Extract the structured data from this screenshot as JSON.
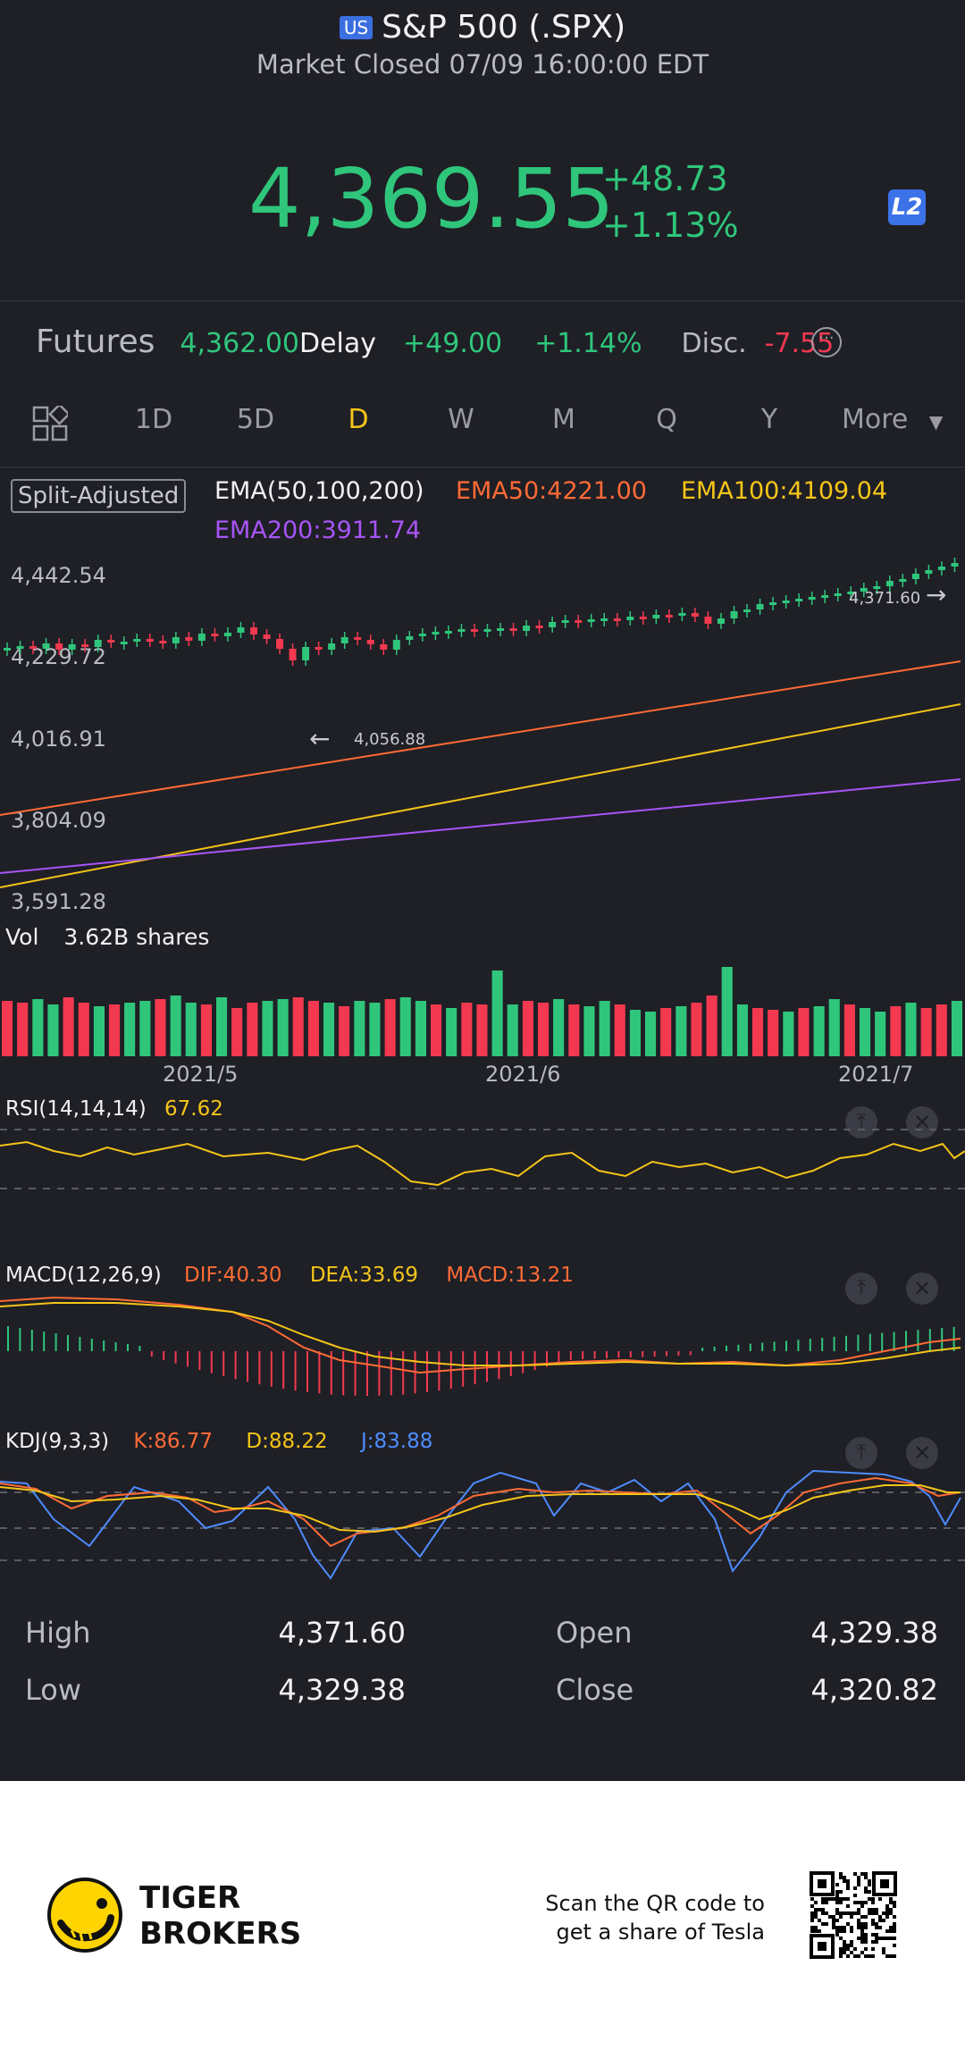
{
  "header": {
    "flag": "US",
    "title": "S&P 500 (.SPX)",
    "status": "Market Closed 07/09 16:00:00 EDT"
  },
  "quote": {
    "price": "4,369.55",
    "change": "+48.73",
    "change_pct": "+1.13%",
    "level_badge": "L2"
  },
  "futures": {
    "label": "Futures",
    "price": "4,362.00",
    "delay": "Delay",
    "change": "+49.00",
    "change_pct": "+1.14%",
    "disc_label": "Disc.",
    "disc_value": "-7.55",
    "menu_icon": "more-circle-icon"
  },
  "tabs": {
    "items": [
      "1D",
      "5D",
      "D",
      "W",
      "M",
      "Q",
      "Y"
    ],
    "active": "D",
    "more": "More",
    "layout_icon": "grid-icon"
  },
  "main_chart": {
    "split_label": "Split-Adjusted",
    "ema_label": "EMA(50,100,200)",
    "ema50": "EMA50:4221.00",
    "ema100": "EMA100:4109.04",
    "ema200": "EMA200:3911.74",
    "axis": [
      "4,442.54",
      "4,229.72",
      "4,016.91",
      "3,804.09",
      "3,591.28"
    ],
    "high_marker": "4,371.60",
    "low_marker": "4,056.88",
    "colors": {
      "up": "#2fc67b",
      "down": "#f2394f",
      "ema50": "#ff6b35",
      "ema100": "#f5c518",
      "ema200": "#a855f7"
    }
  },
  "volume": {
    "label": "Vol",
    "value": "3.62B shares",
    "dates": [
      "2021/5",
      "2021/6",
      "2021/7"
    ]
  },
  "rsi": {
    "label": "RSI(14,14,14)",
    "value": "67.62"
  },
  "macd": {
    "label": "MACD(12,26,9)",
    "dif": "DIF:40.30",
    "dea": "DEA:33.69",
    "macd": "MACD:13.21"
  },
  "kdj": {
    "label": "KDJ(9,3,3)",
    "k": "K:86.77",
    "d": "D:88.22",
    "j": "J:83.88"
  },
  "stats": {
    "high_label": "High",
    "high": "4,371.60",
    "open_label": "Open",
    "open": "4,329.38",
    "low_label": "Low",
    "low": "4,329.38",
    "close_label": "Close",
    "close": "4,320.82"
  },
  "footer": {
    "brand_line1": "TIGER",
    "brand_line2": "BROKERS",
    "promo_line1": "Scan the QR code to",
    "promo_line2": "get a share of Tesla"
  }
}
